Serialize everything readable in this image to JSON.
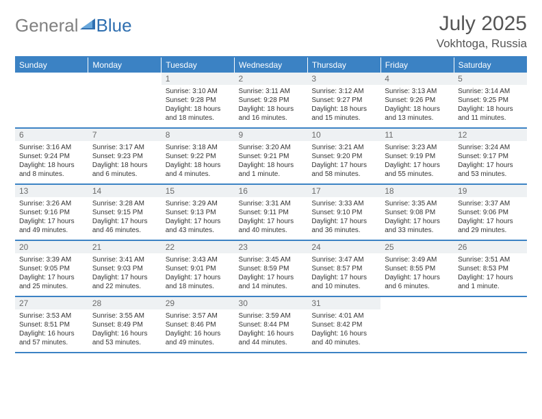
{
  "brand": {
    "word1": "General",
    "word2": "Blue"
  },
  "title": "July 2025",
  "location": "Vokhtoga, Russia",
  "colors": {
    "header_bg": "#3b82c4",
    "header_text": "#ffffff",
    "daynum_bg": "#eef1f3",
    "rule": "#3b82c4"
  },
  "day_headers": [
    "Sunday",
    "Monday",
    "Tuesday",
    "Wednesday",
    "Thursday",
    "Friday",
    "Saturday"
  ],
  "weeks": [
    [
      null,
      null,
      {
        "n": "1",
        "sr": "3:10 AM",
        "ss": "9:28 PM",
        "dl": "18 hours and 18 minutes."
      },
      {
        "n": "2",
        "sr": "3:11 AM",
        "ss": "9:28 PM",
        "dl": "18 hours and 16 minutes."
      },
      {
        "n": "3",
        "sr": "3:12 AM",
        "ss": "9:27 PM",
        "dl": "18 hours and 15 minutes."
      },
      {
        "n": "4",
        "sr": "3:13 AM",
        "ss": "9:26 PM",
        "dl": "18 hours and 13 minutes."
      },
      {
        "n": "5",
        "sr": "3:14 AM",
        "ss": "9:25 PM",
        "dl": "18 hours and 11 minutes."
      }
    ],
    [
      {
        "n": "6",
        "sr": "3:16 AM",
        "ss": "9:24 PM",
        "dl": "18 hours and 8 minutes."
      },
      {
        "n": "7",
        "sr": "3:17 AM",
        "ss": "9:23 PM",
        "dl": "18 hours and 6 minutes."
      },
      {
        "n": "8",
        "sr": "3:18 AM",
        "ss": "9:22 PM",
        "dl": "18 hours and 4 minutes."
      },
      {
        "n": "9",
        "sr": "3:20 AM",
        "ss": "9:21 PM",
        "dl": "18 hours and 1 minute."
      },
      {
        "n": "10",
        "sr": "3:21 AM",
        "ss": "9:20 PM",
        "dl": "17 hours and 58 minutes."
      },
      {
        "n": "11",
        "sr": "3:23 AM",
        "ss": "9:19 PM",
        "dl": "17 hours and 55 minutes."
      },
      {
        "n": "12",
        "sr": "3:24 AM",
        "ss": "9:17 PM",
        "dl": "17 hours and 53 minutes."
      }
    ],
    [
      {
        "n": "13",
        "sr": "3:26 AM",
        "ss": "9:16 PM",
        "dl": "17 hours and 49 minutes."
      },
      {
        "n": "14",
        "sr": "3:28 AM",
        "ss": "9:15 PM",
        "dl": "17 hours and 46 minutes."
      },
      {
        "n": "15",
        "sr": "3:29 AM",
        "ss": "9:13 PM",
        "dl": "17 hours and 43 minutes."
      },
      {
        "n": "16",
        "sr": "3:31 AM",
        "ss": "9:11 PM",
        "dl": "17 hours and 40 minutes."
      },
      {
        "n": "17",
        "sr": "3:33 AM",
        "ss": "9:10 PM",
        "dl": "17 hours and 36 minutes."
      },
      {
        "n": "18",
        "sr": "3:35 AM",
        "ss": "9:08 PM",
        "dl": "17 hours and 33 minutes."
      },
      {
        "n": "19",
        "sr": "3:37 AM",
        "ss": "9:06 PM",
        "dl": "17 hours and 29 minutes."
      }
    ],
    [
      {
        "n": "20",
        "sr": "3:39 AM",
        "ss": "9:05 PM",
        "dl": "17 hours and 25 minutes."
      },
      {
        "n": "21",
        "sr": "3:41 AM",
        "ss": "9:03 PM",
        "dl": "17 hours and 22 minutes."
      },
      {
        "n": "22",
        "sr": "3:43 AM",
        "ss": "9:01 PM",
        "dl": "17 hours and 18 minutes."
      },
      {
        "n": "23",
        "sr": "3:45 AM",
        "ss": "8:59 PM",
        "dl": "17 hours and 14 minutes."
      },
      {
        "n": "24",
        "sr": "3:47 AM",
        "ss": "8:57 PM",
        "dl": "17 hours and 10 minutes."
      },
      {
        "n": "25",
        "sr": "3:49 AM",
        "ss": "8:55 PM",
        "dl": "17 hours and 6 minutes."
      },
      {
        "n": "26",
        "sr": "3:51 AM",
        "ss": "8:53 PM",
        "dl": "17 hours and 1 minute."
      }
    ],
    [
      {
        "n": "27",
        "sr": "3:53 AM",
        "ss": "8:51 PM",
        "dl": "16 hours and 57 minutes."
      },
      {
        "n": "28",
        "sr": "3:55 AM",
        "ss": "8:49 PM",
        "dl": "16 hours and 53 minutes."
      },
      {
        "n": "29",
        "sr": "3:57 AM",
        "ss": "8:46 PM",
        "dl": "16 hours and 49 minutes."
      },
      {
        "n": "30",
        "sr": "3:59 AM",
        "ss": "8:44 PM",
        "dl": "16 hours and 44 minutes."
      },
      {
        "n": "31",
        "sr": "4:01 AM",
        "ss": "8:42 PM",
        "dl": "16 hours and 40 minutes."
      },
      null,
      null
    ]
  ],
  "labels": {
    "sunrise": "Sunrise:",
    "sunset": "Sunset:",
    "daylight": "Daylight:"
  }
}
